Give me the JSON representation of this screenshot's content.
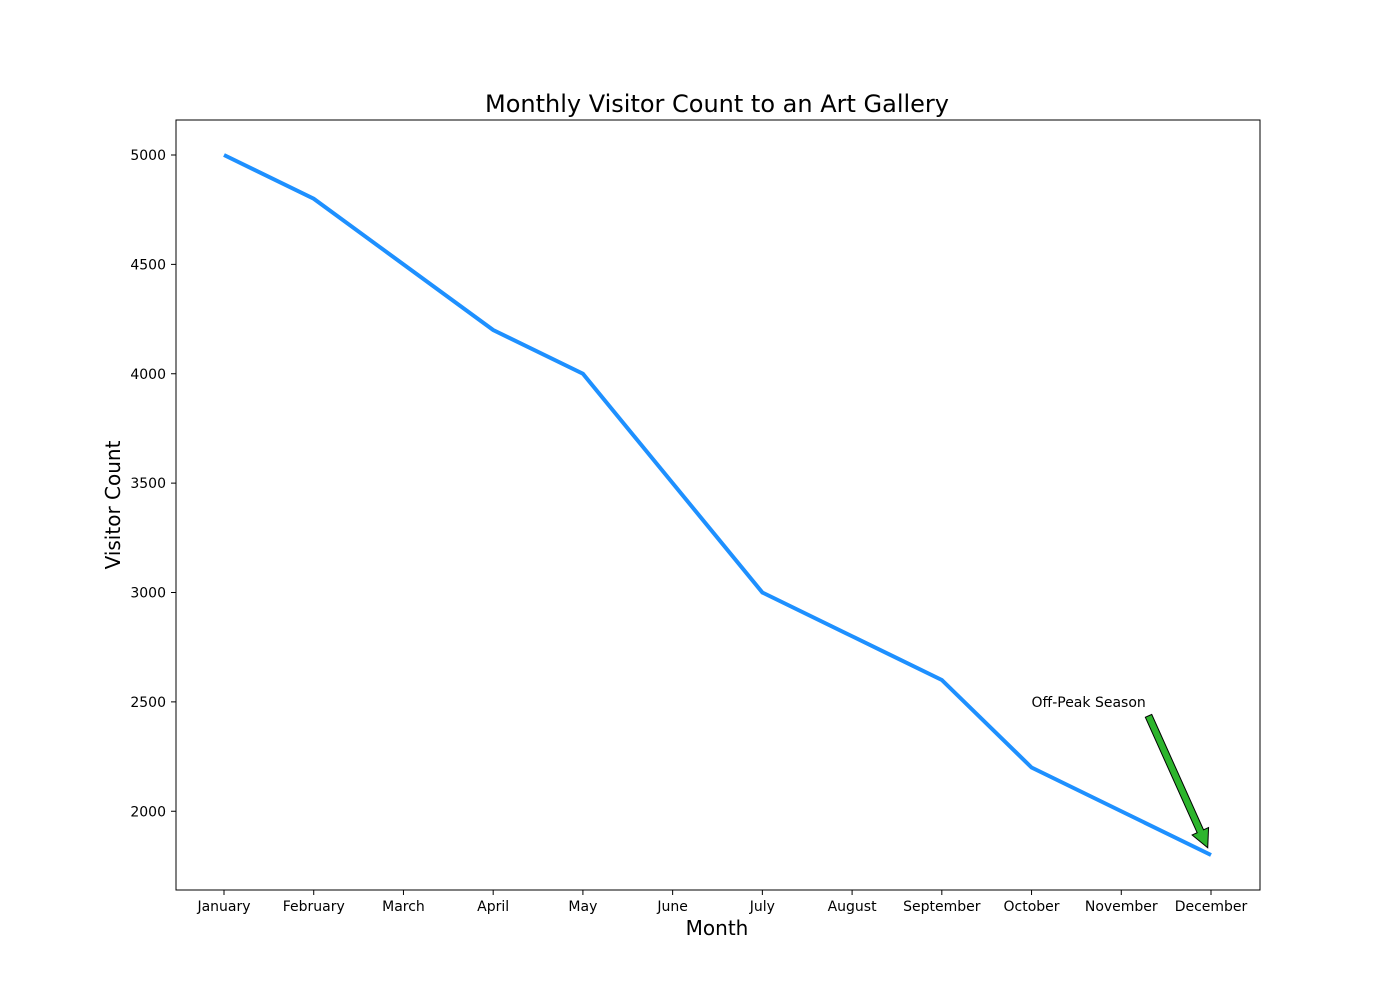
{
  "chart_data": {
    "type": "line",
    "title": "Monthly Visitor Count to an Art Gallery",
    "xlabel": "Month",
    "ylabel": "Visitor Count",
    "categories": [
      "January",
      "February",
      "March",
      "April",
      "May",
      "June",
      "July",
      "August",
      "September",
      "October",
      "November",
      "December"
    ],
    "series": [
      {
        "values": [
          5000,
          4800,
          4500,
          4200,
          4000,
          3500,
          3000,
          2800,
          2600,
          2200,
          2000,
          1800
        ],
        "color": "#1e90ff"
      }
    ],
    "ylim": [
      1640,
      5160
    ],
    "yticks": [
      2000,
      2500,
      3000,
      3500,
      4000,
      4500,
      5000
    ],
    "grid": false,
    "legend": "none",
    "annotation": {
      "text": "Off-Peak Season",
      "target_category": "December",
      "target_value": 1800,
      "text_anchor_category_index": 9.0,
      "text_anchor_value": 2500,
      "arrow_color": "#2db52d"
    }
  }
}
